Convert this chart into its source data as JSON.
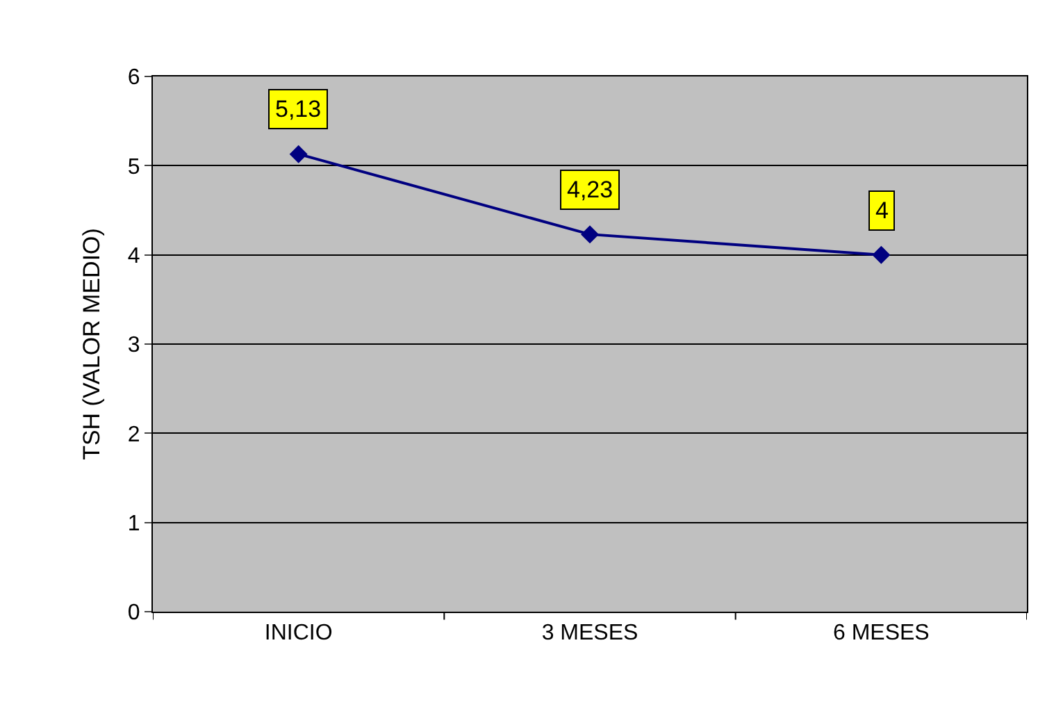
{
  "chart_data": {
    "type": "line",
    "ylabel": "TSH (VALOR MEDIO)",
    "categories": [
      "INICIO",
      "3 MESES",
      "6 MESES"
    ],
    "series": [
      {
        "color": "#000080",
        "values": [
          5.13,
          4.23,
          4
        ],
        "value_labels": [
          "5,13",
          "4,23",
          "4"
        ]
      }
    ],
    "ylim": [
      0,
      6
    ],
    "yticks": [
      0,
      1,
      2,
      3,
      4,
      5,
      6
    ],
    "grid": "y",
    "legend": false,
    "marker": "diamond",
    "line_style": "solid"
  }
}
